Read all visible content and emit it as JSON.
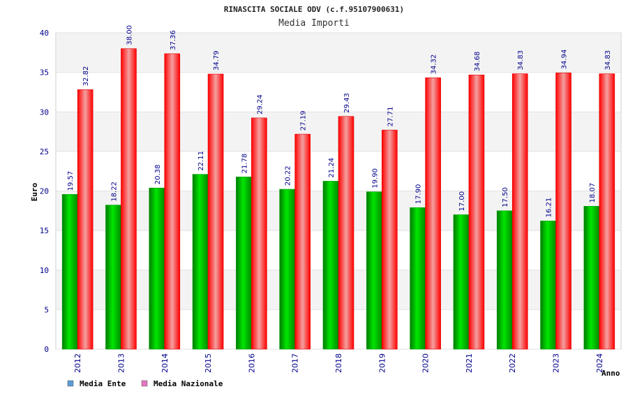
{
  "chart_data": {
    "type": "bar",
    "title": "RINASCITA SOCIALE ODV (c.f.95107900631)",
    "subtitle": "Media Importi",
    "xlabel": "Anno",
    "ylabel": "Euro",
    "ylim": [
      0,
      40
    ],
    "yticks": [
      0,
      5,
      10,
      15,
      20,
      25,
      30,
      35,
      40
    ],
    "grid": true,
    "legend_position": "bottom-left",
    "categories": [
      "2012",
      "2013",
      "2014",
      "2015",
      "2016",
      "2017",
      "2018",
      "2019",
      "2020",
      "2021",
      "2022",
      "2023",
      "2024"
    ],
    "series": [
      {
        "name": "Media Ente",
        "color": "#00c000",
        "legend_color": "#5b9bd5",
        "values": [
          19.57,
          18.22,
          20.38,
          22.11,
          21.78,
          20.22,
          21.24,
          19.9,
          17.9,
          17.0,
          17.5,
          16.21,
          18.07
        ],
        "labels": [
          "19.57",
          "18.22",
          "20.38",
          "22.11",
          "21.78",
          "20.22",
          "21.24",
          "19.90",
          "17.90",
          "17.00",
          "17.50",
          "16.21",
          "18.07"
        ]
      },
      {
        "name": "Media Nazionale",
        "color": "#ff0000",
        "legend_color": "#e377c2",
        "values": [
          32.82,
          38.0,
          37.36,
          34.79,
          29.24,
          27.19,
          29.43,
          27.71,
          34.32,
          34.68,
          34.83,
          34.94,
          34.83
        ],
        "labels": [
          "32.82",
          "38.00",
          "37.36",
          "34.79",
          "29.24",
          "27.19",
          "29.43",
          "27.71",
          "34.32",
          "34.68",
          "34.83",
          "34.94",
          "34.83"
        ]
      }
    ]
  }
}
